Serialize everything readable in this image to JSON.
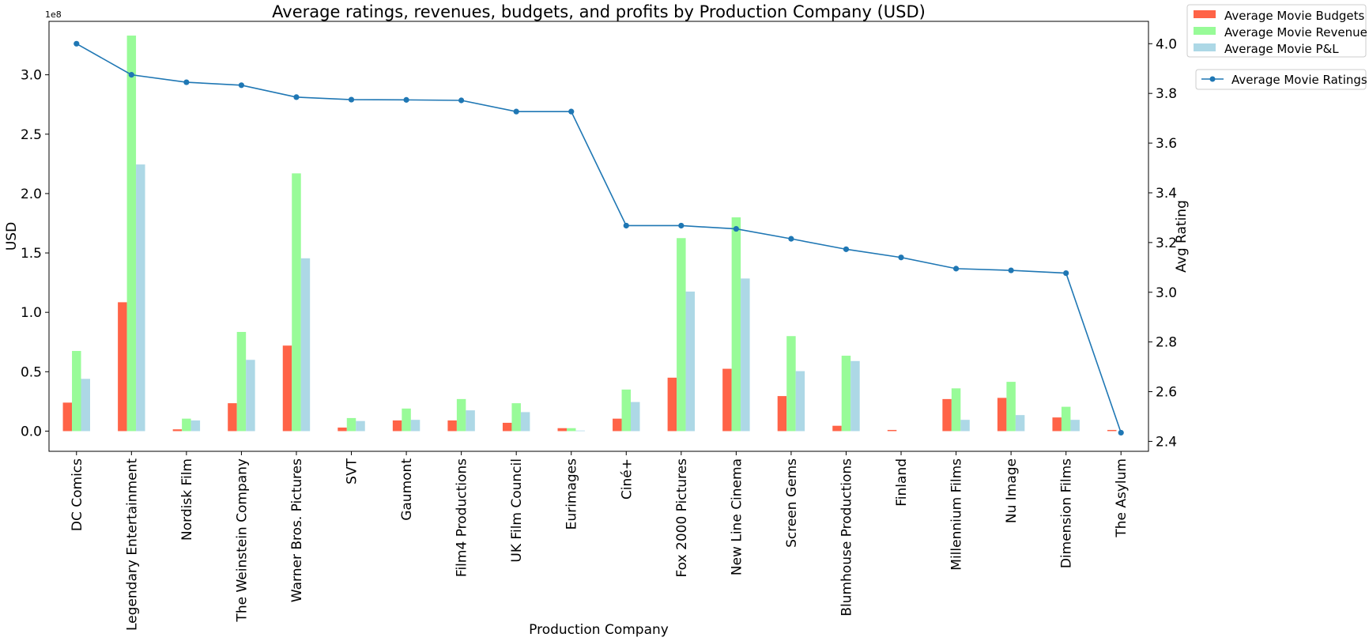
{
  "chart_data": {
    "type": "bar",
    "title": "Average ratings, revenues, budgets, and profits by Production Company (USD)",
    "xlabel": "Production Company",
    "ylabel": "USD",
    "ylabel_right": "Avg Rating",
    "y_offset_text": "1e8",
    "ylim": [
      -0.17,
      3.45
    ],
    "ylim_right": [
      2.36,
      4.09
    ],
    "y_ticks": [
      0.0,
      0.5,
      1.0,
      1.5,
      2.0,
      2.5,
      3.0
    ],
    "y_tick_labels": [
      "0.0",
      "0.5",
      "1.0",
      "1.5",
      "2.0",
      "2.5",
      "3.0"
    ],
    "y_right_ticks": [
      2.4,
      2.6,
      2.8,
      3.0,
      3.2,
      3.4,
      3.6,
      3.8,
      4.0
    ],
    "y_right_tick_labels": [
      "2.4",
      "2.6",
      "2.8",
      "3.0",
      "3.2",
      "3.4",
      "3.6",
      "3.8",
      "4.0"
    ],
    "grid": false,
    "legend_placement": "outside-top-right",
    "categories": [
      "DC Comics",
      "Legendary Entertainment",
      "Nordisk Film",
      "The Weinstein Company",
      "Warner Bros. Pictures",
      "SVT",
      "Gaumont",
      "Film4 Productions",
      "UK Film Council",
      "Eurimages",
      "Ciné+",
      "Fox 2000 Pictures",
      "New Line Cinema",
      "Screen Gems",
      "Blumhouse Productions",
      "Finland",
      "Millennium Films",
      "Nu Image",
      "Dimension Films",
      "The Asylum"
    ],
    "series": [
      {
        "name": "Average Movie Budgets",
        "color": "#ff6347",
        "values": [
          0.24,
          1.085,
          0.015,
          0.235,
          0.72,
          0.03,
          0.09,
          0.09,
          0.07,
          0.025,
          0.105,
          0.45,
          0.525,
          0.295,
          0.045,
          0.01,
          0.27,
          0.28,
          0.115,
          0.01
        ]
      },
      {
        "name": "Average Movie Revenue",
        "color": "#98fb98",
        "values": [
          0.675,
          3.33,
          0.105,
          0.835,
          2.17,
          0.11,
          0.19,
          0.27,
          0.235,
          0.025,
          0.35,
          1.625,
          1.8,
          0.8,
          0.635,
          0.0,
          0.36,
          0.415,
          0.205,
          0.0
        ]
      },
      {
        "name": "Average Movie P&L",
        "color": "#add8e6",
        "values": [
          0.44,
          2.245,
          0.09,
          0.6,
          1.455,
          0.085,
          0.095,
          0.175,
          0.16,
          0.005,
          0.245,
          1.175,
          1.285,
          0.505,
          0.59,
          0.0,
          0.095,
          0.135,
          0.095,
          0.0
        ]
      }
    ],
    "line_series": {
      "name": "Average Movie Ratings",
      "color": "#1f77b4",
      "values": [
        4.0,
        3.875,
        3.845,
        3.833,
        3.785,
        3.775,
        3.774,
        3.772,
        3.727,
        3.727,
        3.268,
        3.268,
        3.255,
        3.215,
        3.173,
        3.14,
        3.095,
        3.088,
        3.077,
        2.435
      ]
    }
  }
}
